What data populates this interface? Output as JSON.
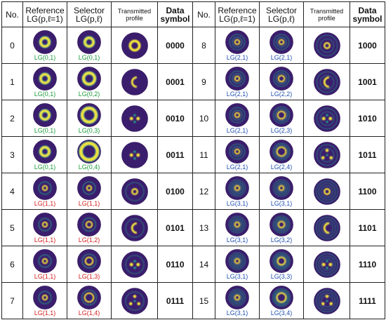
{
  "headers": {
    "no": "No.",
    "reference": "Reference LG(p,ℓ=1)",
    "selector": "Selector LG(p,ℓ)",
    "transmitted": "Transmitted profile",
    "symbol": "Data symbol"
  },
  "colors": {
    "green": "#1a9a3a",
    "red": "#d42020",
    "blue": "#2050b0",
    "bg": "#3b1d6e",
    "ring": "#f1e33a",
    "mid": "#1f9e89"
  },
  "rows": [
    {
      "no": "0",
      "ref": "LG(0,1)",
      "sel": "LG(0,1)",
      "sym": "0000",
      "color": "green",
      "pr": 0,
      "ls": 1,
      "tx": "ring1"
    },
    {
      "no": "1",
      "ref": "LG(0,1)",
      "sel": "LG(0,2)",
      "sym": "0001",
      "color": "green",
      "pr": 0,
      "ls": 2,
      "tx": "crescent"
    },
    {
      "no": "2",
      "ref": "LG(0,1)",
      "sel": "LG(0,3)",
      "sym": "0010",
      "color": "green",
      "pr": 0,
      "ls": 3,
      "tx": "lobes2"
    },
    {
      "no": "3",
      "ref": "LG(0,1)",
      "sel": "LG(0,4)",
      "sym": "0011",
      "color": "green",
      "pr": 0,
      "ls": 4,
      "tx": "lobes3"
    },
    {
      "no": "4",
      "ref": "LG(1,1)",
      "sel": "LG(1,1)",
      "sym": "0100",
      "color": "red",
      "pr": 1,
      "ls": 1,
      "tx": "ring2"
    },
    {
      "no": "5",
      "ref": "LG(1,1)",
      "sel": "LG(1,2)",
      "sym": "0101",
      "color": "red",
      "pr": 1,
      "ls": 2,
      "tx": "crescent2"
    },
    {
      "no": "6",
      "ref": "LG(1,1)",
      "sel": "LG(1,3)",
      "sym": "0110",
      "color": "red",
      "pr": 1,
      "ls": 3,
      "tx": "lobes2b"
    },
    {
      "no": "7",
      "ref": "LG(1,1)",
      "sel": "LG(1,4)",
      "sym": "0111",
      "color": "red",
      "pr": 1,
      "ls": 4,
      "tx": "tri"
    },
    {
      "no": "8",
      "ref": "LG(2,1)",
      "sel": "LG(2,1)",
      "sym": "1000",
      "color": "blue",
      "pr": 2,
      "ls": 1,
      "tx": "ring3"
    },
    {
      "no": "9",
      "ref": "LG(2,1)",
      "sel": "LG(2,2)",
      "sym": "1001",
      "color": "blue",
      "pr": 2,
      "ls": 2,
      "tx": "crescent3"
    },
    {
      "no": "10",
      "ref": "LG(2,1)",
      "sel": "LG(2,3)",
      "sym": "1010",
      "color": "blue",
      "pr": 2,
      "ls": 3,
      "tx": "lobes2c"
    },
    {
      "no": "11",
      "ref": "LG(2,1)",
      "sel": "LG(2,4)",
      "sym": "1011",
      "color": "blue",
      "pr": 2,
      "ls": 4,
      "tx": "tri2"
    },
    {
      "no": "12",
      "ref": "LG(3,1)",
      "sel": "LG(3,1)",
      "sym": "1100",
      "color": "blue",
      "pr": 3,
      "ls": 1,
      "tx": "ring4"
    },
    {
      "no": "13",
      "ref": "LG(3,1)",
      "sel": "LG(3,2)",
      "sym": "1101",
      "color": "blue",
      "pr": 3,
      "ls": 2,
      "tx": "crescent4"
    },
    {
      "no": "14",
      "ref": "LG(3,1)",
      "sel": "LG(3,3)",
      "sym": "1110",
      "color": "blue",
      "pr": 3,
      "ls": 3,
      "tx": "lobes2d"
    },
    {
      "no": "15",
      "ref": "LG(3,1)",
      "sel": "LG(3,4)",
      "sym": "1111",
      "color": "blue",
      "pr": 3,
      "ls": 4,
      "tx": "tri3"
    }
  ]
}
